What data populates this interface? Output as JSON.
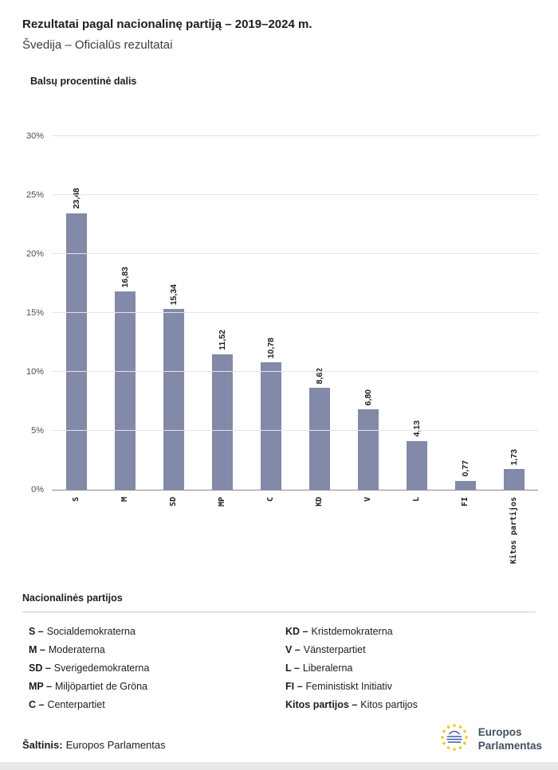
{
  "header": {
    "title": "Rezultatai pagal nacionalinę partiją – 2019–2024 m.",
    "subtitle": "Švedija – Oficialūs rezultatai"
  },
  "chart_data": {
    "type": "bar",
    "title": "Balsų procentinė dalis",
    "categories": [
      "S",
      "M",
      "SD",
      "MP",
      "C",
      "KD",
      "V",
      "L",
      "FI",
      "Kitos partijos"
    ],
    "values": [
      23.48,
      16.83,
      15.34,
      11.52,
      10.78,
      8.62,
      6.8,
      4.13,
      0.77,
      1.73
    ],
    "value_labels": [
      "23,48",
      "16,83",
      "15,34",
      "11,52",
      "10,78",
      "8,62",
      "6,80",
      "4,13",
      "0,77",
      "1,73"
    ],
    "ylim": [
      0,
      30
    ],
    "ytick_step": 5,
    "ytick_labels": [
      "0%",
      "5%",
      "10%",
      "15%",
      "20%",
      "25%",
      "30%"
    ],
    "bar_color": "#8289A9",
    "grid": true,
    "legend_position": "none"
  },
  "legend": {
    "heading": "Nacionalinės partijos",
    "columns": [
      [
        {
          "abbr": "S",
          "name": "Socialdemokraterna"
        },
        {
          "abbr": "M",
          "name": "Moderaterna"
        },
        {
          "abbr": "SD",
          "name": "Sverigedemokraterna"
        },
        {
          "abbr": "MP",
          "name": "Miljöpartiet de Gröna"
        },
        {
          "abbr": "C",
          "name": "Centerpartiet"
        }
      ],
      [
        {
          "abbr": "KD",
          "name": "Kristdemokraterna"
        },
        {
          "abbr": "V",
          "name": "Vänsterpartiet"
        },
        {
          "abbr": "L",
          "name": "Liberalerna"
        },
        {
          "abbr": "FI",
          "name": "Feministiskt Initiativ"
        },
        {
          "abbr": "Kitos partijos",
          "name": "Kitos partijos"
        }
      ]
    ]
  },
  "footer": {
    "source_label": "Šaltinis:",
    "source_value": "Europos Parlamentas",
    "logo_line1": "Europos",
    "logo_line2": "Parlamentas"
  },
  "colors": {
    "bar": "#8289A9",
    "grid": "#e4e4e4",
    "eu_blue": "#3c5aa5",
    "eu_star": "#f2c500"
  }
}
